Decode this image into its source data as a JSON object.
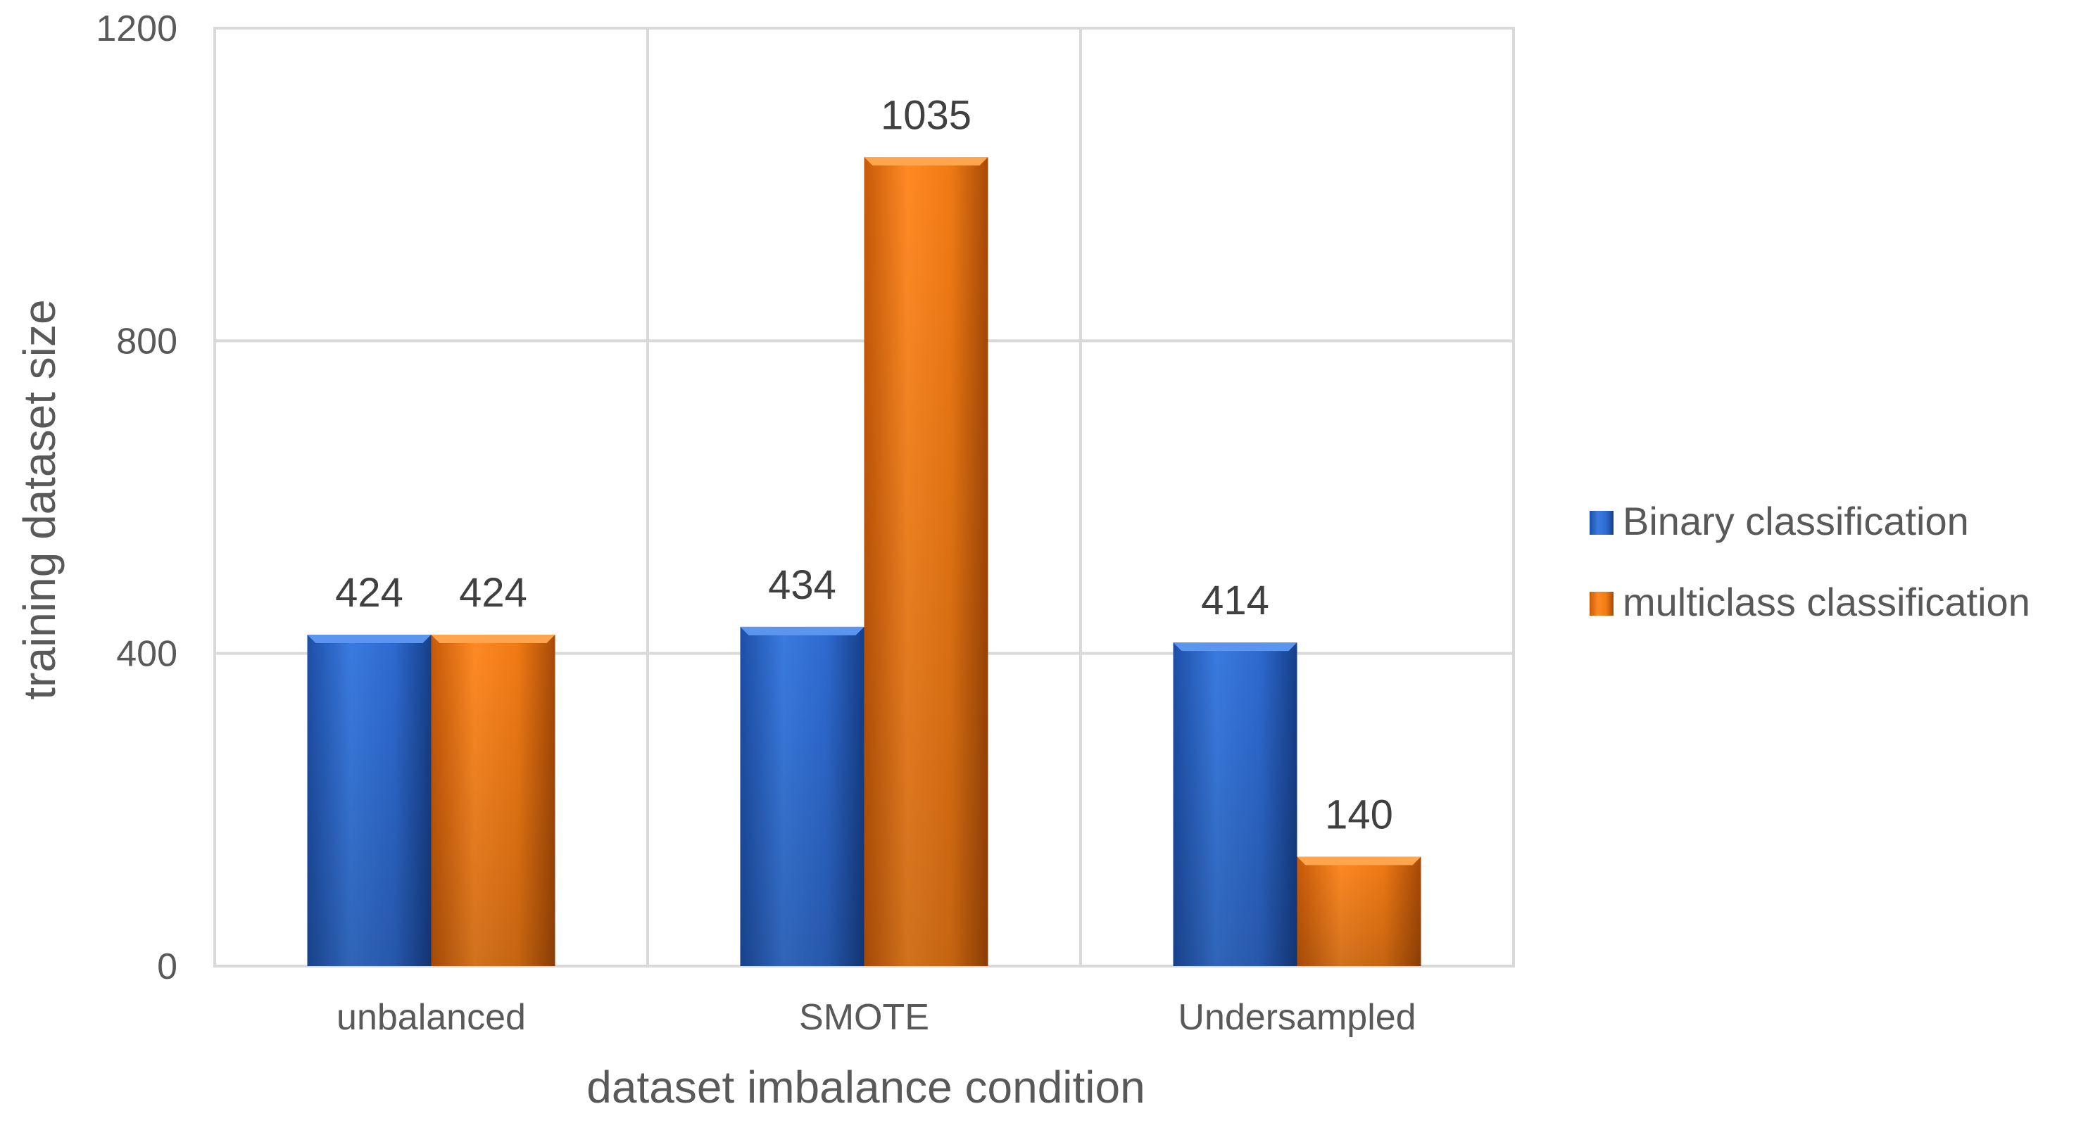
{
  "chart_data": {
    "type": "bar",
    "title": "",
    "xlabel": "dataset imbalance condition",
    "ylabel": "training  dataset size",
    "categories": [
      "unbalanced",
      "SMOTE",
      "Undersampled"
    ],
    "series": [
      {
        "name": "Binary classification",
        "values": [
          424,
          434,
          414
        ],
        "color": "#2E6AD0"
      },
      {
        "name": "multiclass classification",
        "values": [
          424,
          1035,
          140
        ],
        "color": "#F07A14"
      }
    ],
    "ylim": [
      0,
      1200
    ],
    "yticks": [
      0,
      400,
      800,
      1200
    ],
    "grid": true,
    "legend": "right"
  }
}
